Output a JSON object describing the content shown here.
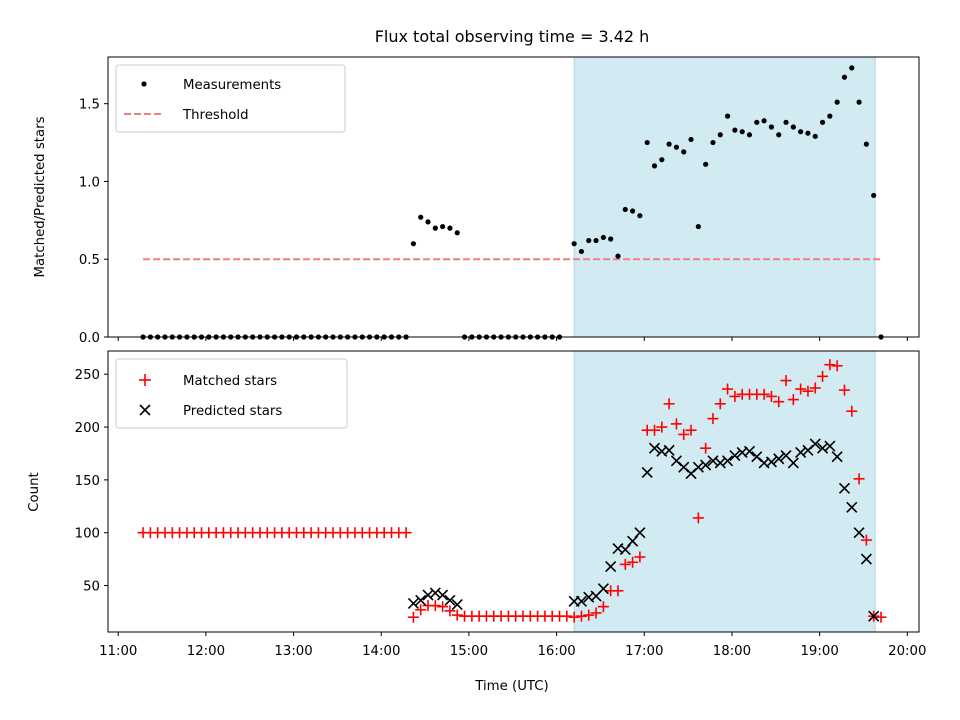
{
  "chart_data": [
    {
      "type": "scatter",
      "title": "Flux total observing time = 3.42 h",
      "xlabel": "",
      "ylabel": "Matched/Predicted stars",
      "ylim": [
        0,
        1.8
      ],
      "yticks": [
        0.0,
        0.5,
        1.0,
        1.5
      ],
      "ytick_labels": [
        "0.0",
        "0.5",
        "1.0",
        "1.5"
      ],
      "legend": {
        "placement": "top-left",
        "entries": [
          "Measurements",
          "Threshold"
        ]
      },
      "shaded_interval": {
        "from": "16:12",
        "to": "19:38",
        "color": "#add8e6"
      },
      "threshold": {
        "y": 0.5,
        "from": "11:17",
        "to": "19:43",
        "color": "#f08080"
      },
      "series": [
        {
          "name": "Measurements",
          "color": "#000000",
          "points": [
            [
              "11:17",
              0
            ],
            [
              "11:22",
              0
            ],
            [
              "11:27",
              0
            ],
            [
              "11:32",
              0
            ],
            [
              "11:37",
              0
            ],
            [
              "11:42",
              0
            ],
            [
              "11:47",
              0
            ],
            [
              "11:52",
              0
            ],
            [
              "11:57",
              0
            ],
            [
              "12:02",
              0
            ],
            [
              "12:07",
              0
            ],
            [
              "12:12",
              0
            ],
            [
              "12:17",
              0
            ],
            [
              "12:22",
              0
            ],
            [
              "12:27",
              0
            ],
            [
              "12:32",
              0
            ],
            [
              "12:37",
              0
            ],
            [
              "12:42",
              0
            ],
            [
              "12:47",
              0
            ],
            [
              "12:52",
              0
            ],
            [
              "12:57",
              0
            ],
            [
              "13:02",
              0
            ],
            [
              "13:07",
              0
            ],
            [
              "13:12",
              0
            ],
            [
              "13:17",
              0
            ],
            [
              "13:22",
              0
            ],
            [
              "13:27",
              0
            ],
            [
              "13:32",
              0
            ],
            [
              "13:37",
              0
            ],
            [
              "13:42",
              0
            ],
            [
              "13:47",
              0
            ],
            [
              "13:52",
              0
            ],
            [
              "13:57",
              0
            ],
            [
              "14:02",
              0
            ],
            [
              "14:07",
              0
            ],
            [
              "14:12",
              0
            ],
            [
              "14:17",
              0
            ],
            [
              "14:22",
              0.6
            ],
            [
              "14:27",
              0.77
            ],
            [
              "14:32",
              0.74
            ],
            [
              "14:37",
              0.7
            ],
            [
              "14:42",
              0.71
            ],
            [
              "14:47",
              0.7
            ],
            [
              "14:52",
              0.67
            ],
            [
              "14:57",
              0
            ],
            [
              "15:02",
              0
            ],
            [
              "15:07",
              0
            ],
            [
              "15:12",
              0
            ],
            [
              "15:17",
              0
            ],
            [
              "15:22",
              0
            ],
            [
              "15:27",
              0
            ],
            [
              "15:32",
              0
            ],
            [
              "15:37",
              0
            ],
            [
              "15:42",
              0
            ],
            [
              "15:47",
              0
            ],
            [
              "15:52",
              0
            ],
            [
              "15:57",
              0
            ],
            [
              "16:02",
              0
            ],
            [
              "16:12",
              0.6
            ],
            [
              "16:17",
              0.55
            ],
            [
              "16:22",
              0.62
            ],
            [
              "16:27",
              0.62
            ],
            [
              "16:32",
              0.64
            ],
            [
              "16:37",
              0.63
            ],
            [
              "16:42",
              0.52
            ],
            [
              "16:47",
              0.82
            ],
            [
              "16:52",
              0.81
            ],
            [
              "16:57",
              0.78
            ],
            [
              "17:02",
              1.25
            ],
            [
              "17:07",
              1.1
            ],
            [
              "17:12",
              1.14
            ],
            [
              "17:17",
              1.24
            ],
            [
              "17:22",
              1.22
            ],
            [
              "17:27",
              1.19
            ],
            [
              "17:32",
              1.27
            ],
            [
              "17:37",
              0.71
            ],
            [
              "17:42",
              1.11
            ],
            [
              "17:47",
              1.25
            ],
            [
              "17:52",
              1.3
            ],
            [
              "17:57",
              1.42
            ],
            [
              "18:02",
              1.33
            ],
            [
              "18:07",
              1.32
            ],
            [
              "18:12",
              1.3
            ],
            [
              "18:17",
              1.38
            ],
            [
              "18:22",
              1.39
            ],
            [
              "18:27",
              1.35
            ],
            [
              "18:32",
              1.3
            ],
            [
              "18:37",
              1.38
            ],
            [
              "18:42",
              1.35
            ],
            [
              "18:47",
              1.32
            ],
            [
              "18:52",
              1.31
            ],
            [
              "18:57",
              1.29
            ],
            [
              "19:02",
              1.38
            ],
            [
              "19:07",
              1.42
            ],
            [
              "19:12",
              1.51
            ],
            [
              "19:17",
              1.67
            ],
            [
              "19:22",
              1.73
            ],
            [
              "19:27",
              1.51
            ],
            [
              "19:32",
              1.24
            ],
            [
              "19:37",
              0.91
            ],
            [
              "19:42",
              0
            ]
          ]
        }
      ]
    },
    {
      "type": "scatter",
      "title": "",
      "xlabel": "Time (UTC)",
      "ylabel": "Count",
      "xlim": [
        "10:53",
        "20:08"
      ],
      "ylim": [
        6,
        272
      ],
      "xticks": [
        "11:00",
        "12:00",
        "13:00",
        "14:00",
        "15:00",
        "16:00",
        "17:00",
        "18:00",
        "19:00",
        "20:00"
      ],
      "xtick_labels": [
        "11:00",
        "12:00",
        "13:00",
        "14:00",
        "15:00",
        "16:00",
        "17:00",
        "18:00",
        "19:00",
        "20:00"
      ],
      "yticks": [
        50,
        100,
        150,
        200,
        250
      ],
      "ytick_labels": [
        "50",
        "100",
        "150",
        "200",
        "250"
      ],
      "legend": {
        "placement": "top-left",
        "entries": [
          "Matched stars",
          "Predicted stars"
        ]
      },
      "shaded_interval": {
        "from": "16:12",
        "to": "19:38",
        "color": "#add8e6"
      },
      "series": [
        {
          "name": "Matched stars",
          "marker": "+",
          "color": "#ff0000",
          "points": [
            [
              "11:17",
              100
            ],
            [
              "11:22",
              100
            ],
            [
              "11:27",
              100
            ],
            [
              "11:32",
              100
            ],
            [
              "11:37",
              100
            ],
            [
              "11:42",
              100
            ],
            [
              "11:47",
              100
            ],
            [
              "11:52",
              100
            ],
            [
              "11:57",
              100
            ],
            [
              "12:02",
              100
            ],
            [
              "12:07",
              100
            ],
            [
              "12:12",
              100
            ],
            [
              "12:17",
              100
            ],
            [
              "12:22",
              100
            ],
            [
              "12:27",
              100
            ],
            [
              "12:32",
              100
            ],
            [
              "12:37",
              100
            ],
            [
              "12:42",
              100
            ],
            [
              "12:47",
              100
            ],
            [
              "12:52",
              100
            ],
            [
              "12:57",
              100
            ],
            [
              "13:02",
              100
            ],
            [
              "13:07",
              100
            ],
            [
              "13:12",
              100
            ],
            [
              "13:17",
              100
            ],
            [
              "13:22",
              100
            ],
            [
              "13:27",
              100
            ],
            [
              "13:32",
              100
            ],
            [
              "13:37",
              100
            ],
            [
              "13:42",
              100
            ],
            [
              "13:47",
              100
            ],
            [
              "13:52",
              100
            ],
            [
              "13:57",
              100
            ],
            [
              "14:02",
              100
            ],
            [
              "14:07",
              100
            ],
            [
              "14:12",
              100
            ],
            [
              "14:17",
              100
            ],
            [
              "14:22",
              20
            ],
            [
              "14:27",
              27
            ],
            [
              "14:32",
              31
            ],
            [
              "14:37",
              31
            ],
            [
              "14:42",
              30
            ],
            [
              "14:47",
              26
            ],
            [
              "14:52",
              22
            ],
            [
              "14:57",
              21
            ],
            [
              "15:02",
              21
            ],
            [
              "15:07",
              21
            ],
            [
              "15:12",
              21
            ],
            [
              "15:17",
              21
            ],
            [
              "15:22",
              21
            ],
            [
              "15:27",
              21
            ],
            [
              "15:32",
              21
            ],
            [
              "15:37",
              21
            ],
            [
              "15:42",
              21
            ],
            [
              "15:47",
              21
            ],
            [
              "15:52",
              21
            ],
            [
              "15:57",
              21
            ],
            [
              "16:02",
              21
            ],
            [
              "16:07",
              21
            ],
            [
              "16:12",
              20
            ],
            [
              "16:17",
              21
            ],
            [
              "16:22",
              22
            ],
            [
              "16:27",
              24
            ],
            [
              "16:32",
              30
            ],
            [
              "16:37",
              45
            ],
            [
              "16:42",
              45
            ],
            [
              "16:47",
              70
            ],
            [
              "16:52",
              72
            ],
            [
              "16:57",
              77
            ],
            [
              "17:02",
              197
            ],
            [
              "17:07",
              197
            ],
            [
              "17:12",
              200
            ],
            [
              "17:17",
              222
            ],
            [
              "17:22",
              203
            ],
            [
              "17:27",
              193
            ],
            [
              "17:32",
              197
            ],
            [
              "17:37",
              114
            ],
            [
              "17:42",
              180
            ],
            [
              "17:47",
              208
            ],
            [
              "17:52",
              222
            ],
            [
              "17:57",
              236
            ],
            [
              "18:02",
              229
            ],
            [
              "18:07",
              231
            ],
            [
              "18:12",
              231
            ],
            [
              "18:17",
              231
            ],
            [
              "18:22",
              231
            ],
            [
              "18:27",
              229
            ],
            [
              "18:32",
              224
            ],
            [
              "18:37",
              244
            ],
            [
              "18:42",
              226
            ],
            [
              "18:47",
              236
            ],
            [
              "18:52",
              234
            ],
            [
              "18:57",
              237
            ],
            [
              "19:02",
              248
            ],
            [
              "19:07",
              259
            ],
            [
              "19:12",
              258
            ],
            [
              "19:17",
              235
            ],
            [
              "19:22",
              215
            ],
            [
              "19:27",
              151
            ],
            [
              "19:32",
              93
            ],
            [
              "19:37",
              21
            ],
            [
              "19:42",
              20
            ]
          ]
        },
        {
          "name": "Predicted stars",
          "marker": "x",
          "color": "#000000",
          "points": [
            [
              "14:22",
              33
            ],
            [
              "14:27",
              36
            ],
            [
              "14:32",
              41
            ],
            [
              "14:37",
              43
            ],
            [
              "14:42",
              41
            ],
            [
              "14:47",
              36
            ],
            [
              "14:52",
              32
            ],
            [
              "16:12",
              35
            ],
            [
              "16:17",
              35
            ],
            [
              "16:22",
              39
            ],
            [
              "16:27",
              40
            ],
            [
              "16:32",
              47
            ],
            [
              "16:37",
              68
            ],
            [
              "16:42",
              85
            ],
            [
              "16:47",
              84
            ],
            [
              "16:52",
              92
            ],
            [
              "16:57",
              100
            ],
            [
              "17:02",
              157
            ],
            [
              "17:07",
              180
            ],
            [
              "17:12",
              177
            ],
            [
              "17:17",
              178
            ],
            [
              "17:22",
              168
            ],
            [
              "17:27",
              162
            ],
            [
              "17:32",
              156
            ],
            [
              "17:37",
              162
            ],
            [
              "17:42",
              164
            ],
            [
              "17:47",
              168
            ],
            [
              "17:52",
              166
            ],
            [
              "17:57",
              168
            ],
            [
              "18:02",
              173
            ],
            [
              "18:07",
              176
            ],
            [
              "18:12",
              177
            ],
            [
              "18:17",
              172
            ],
            [
              "18:22",
              166
            ],
            [
              "18:27",
              167
            ],
            [
              "18:32",
              170
            ],
            [
              "18:37",
              173
            ],
            [
              "18:42",
              166
            ],
            [
              "18:47",
              176
            ],
            [
              "18:52",
              178
            ],
            [
              "18:57",
              184
            ],
            [
              "19:02",
              180
            ],
            [
              "19:07",
              182
            ],
            [
              "19:12",
              172
            ],
            [
              "19:17",
              142
            ],
            [
              "19:22",
              124
            ],
            [
              "19:27",
              100
            ],
            [
              "19:32",
              75
            ],
            [
              "19:37",
              21
            ]
          ]
        }
      ]
    }
  ]
}
